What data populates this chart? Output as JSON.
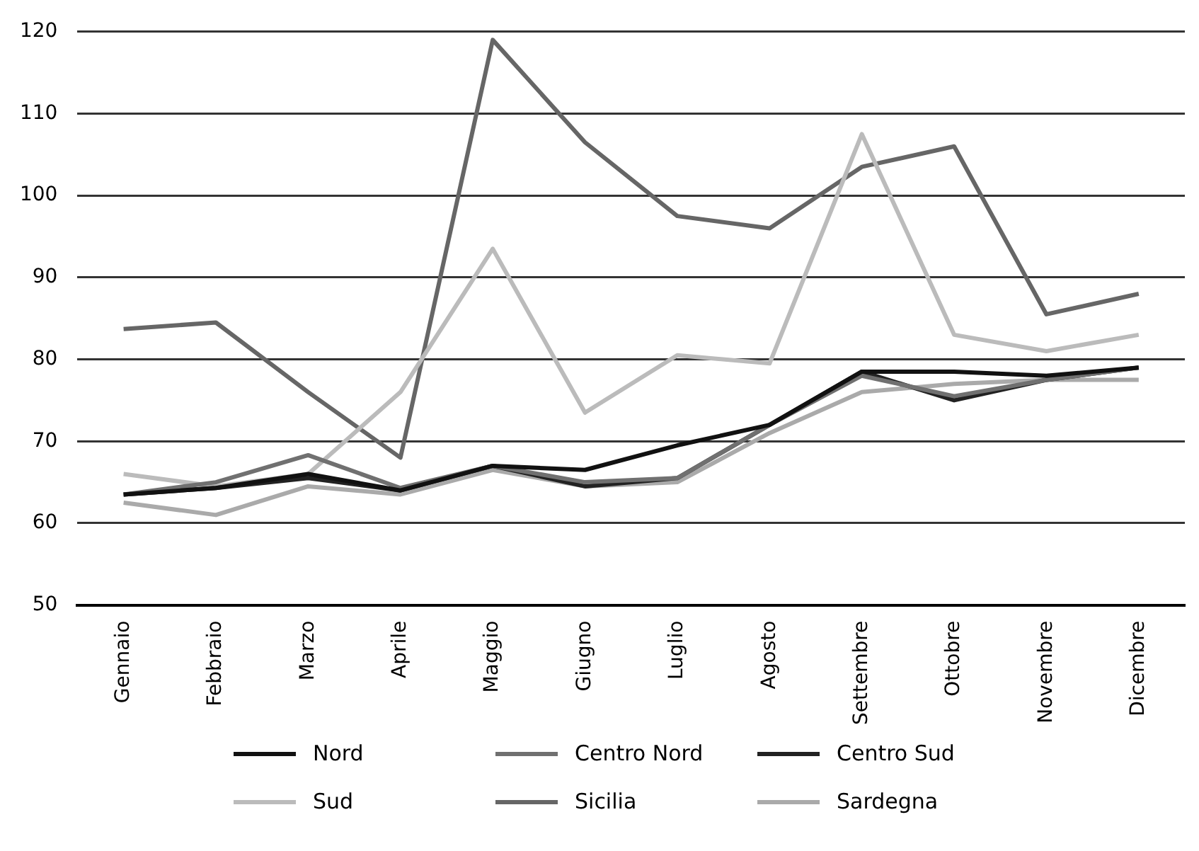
{
  "chart_data": {
    "type": "line",
    "categories": [
      "Gennaio",
      "Febbraio",
      "Marzo",
      "Aprile",
      "Maggio",
      "Giugno",
      "Luglio",
      "Agosto",
      "Settembre",
      "Ottobre",
      "Novembre",
      "Dicembre"
    ],
    "series": [
      {
        "name": "Nord",
        "color": "#111111",
        "values": [
          63.5,
          64.3,
          66,
          64,
          67,
          66.5,
          69.5,
          72,
          78.5,
          78.5,
          78,
          79
        ]
      },
      {
        "name": "Centro Nord",
        "color": "#707070",
        "values": [
          63.5,
          65,
          68.3,
          64.3,
          67,
          65,
          65.5,
          72,
          78,
          75.5,
          77.5,
          79
        ]
      },
      {
        "name": "Centro Sud",
        "color": "#222222",
        "values": [
          63.5,
          64.3,
          65.5,
          64,
          67,
          64.5,
          65.5,
          72,
          78.5,
          75,
          77.5,
          79
        ]
      },
      {
        "name": "Sud",
        "color": "#bbbbbb",
        "values": [
          66,
          64.5,
          66,
          76,
          93.5,
          73.5,
          80.5,
          79.5,
          107.5,
          83,
          81,
          83
        ]
      },
      {
        "name": "Sicilia",
        "color": "#666666",
        "values": [
          83.7,
          84.5,
          76,
          68,
          119,
          106.5,
          97.5,
          96,
          103.5,
          106,
          85.5,
          88
        ]
      },
      {
        "name": "Sardegna",
        "color": "#aaaaaa",
        "values": [
          62.5,
          61,
          64.5,
          63.5,
          66.5,
          64.5,
          65,
          71,
          76,
          77,
          77.5,
          77.5
        ]
      }
    ],
    "ylim": [
      50,
      120
    ],
    "yticks": [
      50,
      60,
      70,
      80,
      90,
      100,
      110,
      120
    ],
    "grid": "y",
    "legend": "bottom",
    "marker": "none",
    "line_style": "solid"
  }
}
